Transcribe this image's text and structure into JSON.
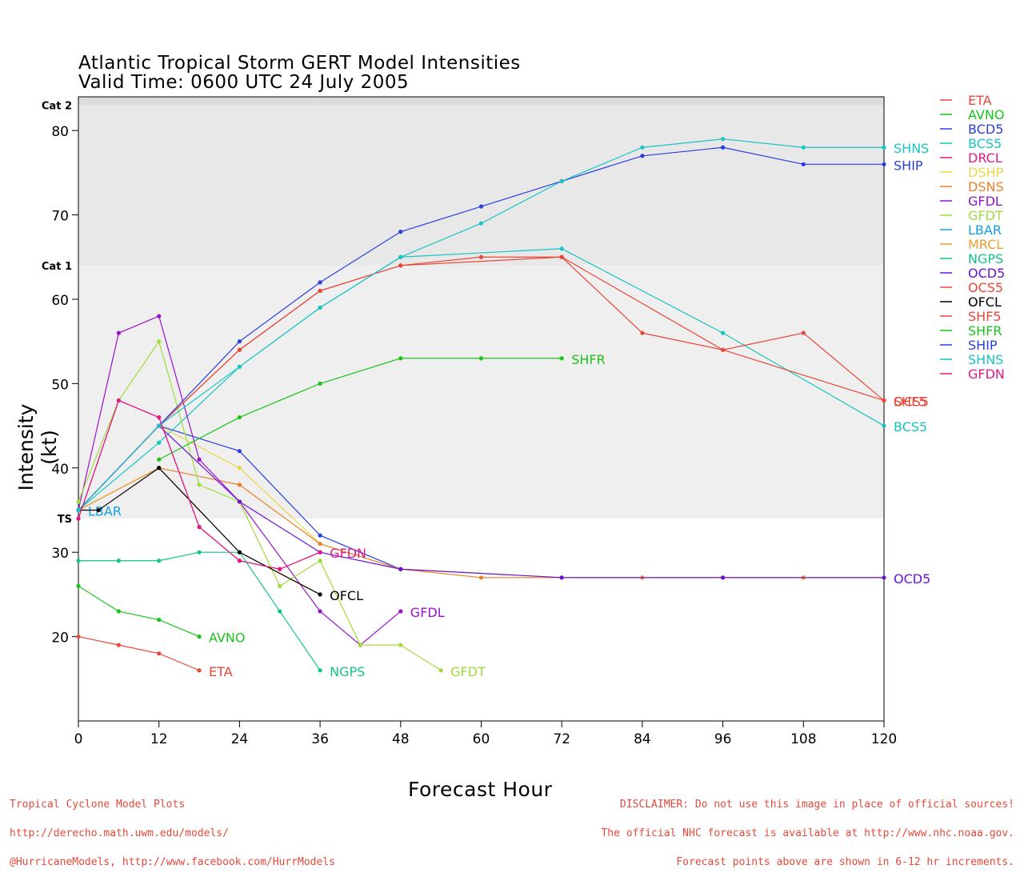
{
  "chart_data": {
    "type": "line",
    "title": "Atlantic Tropical Storm GERT Model Intensities",
    "subtitle": "Valid Time: 0600 UTC 24 July 2005",
    "xlabel": "Forecast Hour",
    "ylabel": "Intensity (kt)",
    "xlim": [
      0,
      120
    ],
    "ylim": [
      10,
      84
    ],
    "xticks": [
      0,
      12,
      24,
      36,
      48,
      60,
      72,
      84,
      96,
      108,
      120
    ],
    "yticks": [
      20,
      30,
      40,
      50,
      60,
      70,
      80
    ],
    "category_bands": [
      {
        "label": "TS",
        "from": 34,
        "to": 64,
        "color": "#efefef"
      },
      {
        "label": "Cat 1",
        "from": 64,
        "to": 83,
        "color": "#e8e8e8"
      },
      {
        "label": "Cat 2",
        "from": 83,
        "to": 84,
        "color": "#dcdcdc"
      }
    ],
    "legend_position": "right",
    "series": [
      {
        "name": "ETA",
        "color": "#e8483a",
        "x": [
          0,
          6,
          12,
          18
        ],
        "y": [
          20,
          19,
          18,
          16
        ],
        "end_label": "ETA"
      },
      {
        "name": "AVNO",
        "color": "#19c419",
        "x": [
          0,
          6,
          12,
          18
        ],
        "y": [
          26,
          23,
          22,
          20
        ],
        "end_label": "AVNO"
      },
      {
        "name": "BCD5",
        "color": "#2a3fe0",
        "x": [
          0,
          12,
          24,
          36,
          48
        ],
        "y": [
          35,
          45,
          42,
          32,
          28
        ],
        "end_label": ""
      },
      {
        "name": "BCS5",
        "color": "#18c4c4",
        "x": [
          0,
          12,
          24,
          36,
          48,
          72,
          96,
          120
        ],
        "y": [
          35,
          43,
          52,
          59,
          65,
          66,
          56,
          45
        ],
        "end_label": "BCS5"
      },
      {
        "name": "DRCL",
        "color": "#e01b84",
        "x": [
          0,
          6,
          12,
          18,
          24,
          30,
          36
        ],
        "y": [
          34,
          48,
          46,
          33,
          29,
          28,
          30
        ],
        "end_label": ""
      },
      {
        "name": "DSHP",
        "color": "#e8d84a",
        "x": [
          0,
          12,
          24,
          36,
          48,
          72,
          84,
          96,
          108,
          120
        ],
        "y": [
          35,
          45,
          40,
          31,
          28,
          27,
          27,
          27,
          27,
          27
        ],
        "end_label": ""
      },
      {
        "name": "DSNS",
        "color": "#e8822a",
        "x": [
          0,
          12,
          24,
          36,
          48,
          60,
          72,
          84,
          96,
          108,
          120
        ],
        "y": [
          35,
          40,
          38,
          31,
          28,
          27,
          27,
          27,
          27,
          27,
          27
        ],
        "end_label": ""
      },
      {
        "name": "GFDL",
        "color": "#9a12c8",
        "x": [
          0,
          6,
          12,
          18,
          24,
          36,
          42,
          48
        ],
        "y": [
          35,
          56,
          58,
          41,
          36,
          23,
          19,
          23
        ],
        "end_label": "GFDL"
      },
      {
        "name": "GFDT",
        "color": "#a0dc3a",
        "x": [
          0,
          6,
          12,
          18,
          24,
          30,
          36,
          42,
          48,
          54
        ],
        "y": [
          36,
          48,
          55,
          38,
          36,
          26,
          29,
          19,
          19,
          16
        ],
        "end_label": "GFDT"
      },
      {
        "name": "LBAR",
        "color": "#12a0e0",
        "x": [
          0
        ],
        "y": [
          35
        ],
        "end_label": "LBAR"
      },
      {
        "name": "MRCL",
        "color": "#e8a030",
        "x": [
          0,
          12,
          24,
          36
        ],
        "y": [
          35,
          40,
          30,
          25
        ],
        "end_label": ""
      },
      {
        "name": "NGPS",
        "color": "#12c48a",
        "x": [
          0,
          6,
          12,
          18,
          24,
          30,
          36
        ],
        "y": [
          29,
          29,
          29,
          30,
          30,
          23,
          16
        ],
        "end_label": "NGPS"
      },
      {
        "name": "OCD5",
        "color": "#6a12d8",
        "x": [
          0,
          12,
          24,
          36,
          48,
          72,
          96,
          120
        ],
        "y": [
          35,
          45,
          36,
          30,
          28,
          27,
          27,
          27
        ],
        "end_label": "OCD5"
      },
      {
        "name": "OCS5",
        "color": "#e8483a",
        "x": [
          0,
          12,
          24,
          36,
          48,
          72,
          96,
          120
        ],
        "y": [
          35,
          45,
          54,
          61,
          64,
          65,
          54,
          48
        ],
        "end_label": "OCS5"
      },
      {
        "name": "OFCL",
        "color": "#000000",
        "x": [
          0,
          3,
          12,
          24,
          36
        ],
        "y": [
          35,
          35,
          40,
          30,
          25
        ],
        "end_label": "OFCL"
      },
      {
        "name": "SHF5",
        "color": "#e8483a",
        "x": [
          0,
          12,
          24,
          36,
          48,
          60,
          72,
          84,
          96,
          108,
          120
        ],
        "y": [
          35,
          45,
          54,
          61,
          64,
          65,
          65,
          56,
          54,
          56,
          48
        ],
        "end_label": "SHF5"
      },
      {
        "name": "SHFR",
        "color": "#19c419",
        "x": [
          12,
          24,
          36,
          48,
          60,
          72
        ],
        "y": [
          41,
          46,
          50,
          53,
          53,
          53
        ],
        "end_label": "SHFR"
      },
      {
        "name": "SHIP",
        "color": "#2a3fe0",
        "x": [
          0,
          12,
          24,
          36,
          48,
          60,
          72,
          84,
          96,
          108,
          120
        ],
        "y": [
          35,
          45,
          55,
          62,
          68,
          71,
          74,
          77,
          78,
          76,
          76
        ],
        "end_label": "SHIP"
      },
      {
        "name": "SHNS",
        "color": "#18c4c4",
        "x": [
          0,
          12,
          24,
          36,
          48,
          60,
          72,
          84,
          96,
          108,
          120
        ],
        "y": [
          35,
          45,
          52,
          59,
          65,
          69,
          74,
          78,
          79,
          78,
          78
        ],
        "end_label": "SHNS"
      },
      {
        "name": "GFDN",
        "color": "#e01b84",
        "x": [
          0,
          6,
          12,
          18,
          24,
          30,
          36
        ],
        "y": [
          34,
          48,
          46,
          33,
          29,
          28,
          30
        ],
        "end_label": "GFDN"
      }
    ]
  },
  "footer": {
    "left_lines": [
      "Tropical Cyclone Model Plots",
      "http://derecho.math.uwm.edu/models/",
      "@HurricaneModels, http://www.facebook.com/HurrModels"
    ],
    "right_lines": [
      "DISCLAIMER: Do not use this image in place of official sources!",
      "The official NHC forecast is available at http://www.nhc.noaa.gov.",
      "Forecast points above are shown in 6-12 hr increments."
    ]
  }
}
